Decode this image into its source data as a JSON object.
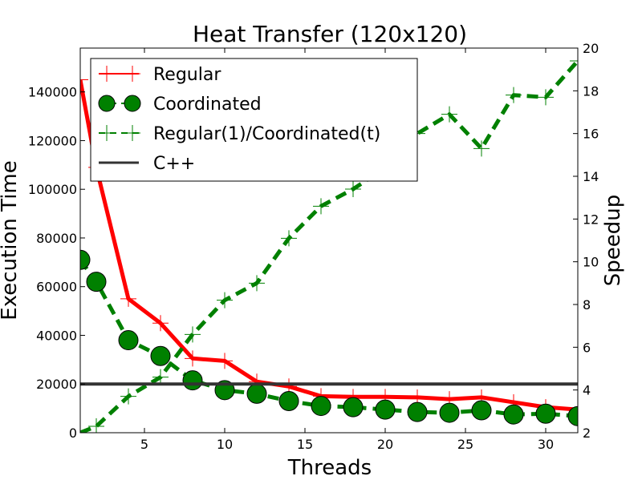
{
  "chart_data": {
    "type": "line",
    "title": "Heat Transfer (120x120)",
    "xlabel": "Threads",
    "ylabel": "Execution Time",
    "y2label": "Speedup",
    "xlim": [
      1,
      32
    ],
    "ylim": [
      0,
      158000
    ],
    "y2lim": [
      2,
      20
    ],
    "xticks": [
      5,
      10,
      15,
      20,
      25,
      30
    ],
    "yticks": [
      0,
      20000,
      40000,
      60000,
      80000,
      100000,
      120000,
      140000
    ],
    "y2ticks": [
      2,
      4,
      6,
      8,
      10,
      12,
      14,
      16,
      18,
      20
    ],
    "grid": false,
    "legend_position": "upper-left",
    "series": [
      {
        "name": "Regular",
        "axis": "left",
        "color": "#ff0000",
        "style": "solid",
        "marker": "plus",
        "x": [
          1,
          2,
          4,
          6,
          8,
          10,
          12,
          14,
          16,
          18,
          20,
          22,
          24,
          26,
          28,
          30,
          32
        ],
        "y": [
          145000,
          109000,
          55000,
          45000,
          30500,
          29500,
          21000,
          19000,
          15000,
          14700,
          14700,
          14500,
          13800,
          14500,
          12500,
          10500,
          9500
        ]
      },
      {
        "name": "Coordinated",
        "axis": "left",
        "color": "#008000",
        "style": "dashed",
        "marker": "circle",
        "x": [
          1,
          2,
          4,
          6,
          8,
          10,
          12,
          14,
          16,
          18,
          20,
          22,
          24,
          26,
          28,
          30,
          32
        ],
        "y": [
          71000,
          62000,
          38000,
          31500,
          21500,
          17500,
          16000,
          13000,
          11000,
          10500,
          9500,
          8500,
          8200,
          9200,
          7500,
          7800,
          6800
        ]
      },
      {
        "name": "Regular(1)/Coordinated(t)",
        "axis": "right",
        "color": "#008000",
        "style": "dashed",
        "marker": "plus",
        "x": [
          1,
          2,
          4,
          6,
          8,
          10,
          12,
          14,
          16,
          18,
          20,
          22,
          24,
          26,
          28,
          30,
          32
        ],
        "y": [
          2.0,
          2.3,
          3.7,
          4.6,
          6.6,
          8.2,
          9.0,
          11.1,
          12.6,
          13.4,
          14.4,
          16.0,
          16.9,
          15.3,
          17.8,
          17.7,
          19.4
        ]
      },
      {
        "name": "C++",
        "axis": "left",
        "color": "#333333",
        "style": "solid",
        "marker": "none",
        "x": [
          1,
          32
        ],
        "y": [
          20000,
          20000
        ]
      }
    ]
  }
}
